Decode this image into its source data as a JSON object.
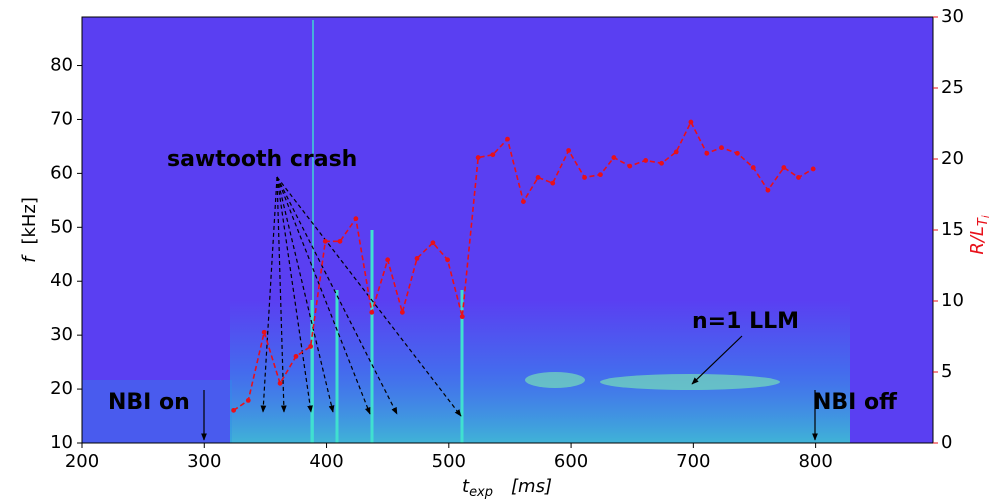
{
  "chart_data": {
    "type": "line",
    "xlabel": {
      "symbol": "t",
      "subscript": "exp",
      "unit": "[ms]"
    },
    "ylabel": {
      "symbol": "f",
      "unit": "[kHz]"
    },
    "y2label": {
      "symbol": "R/L",
      "subscript": "T",
      "subsubscript": "i"
    },
    "xlim": [
      200,
      896
    ],
    "ylim": [
      10,
      89
    ],
    "y2lim": [
      0,
      30
    ],
    "xticks": [
      200,
      300,
      400,
      500,
      600,
      700,
      800
    ],
    "yticks": [
      10,
      20,
      30,
      40,
      50,
      60,
      70,
      80
    ],
    "y2ticks": [
      0,
      5,
      10,
      15,
      20,
      25,
      30
    ],
    "y2color": "#e8101a",
    "x": [
      324,
      336,
      349,
      362,
      375,
      387,
      399,
      411,
      424,
      437,
      450,
      462,
      474,
      487,
      499,
      511,
      524,
      536,
      548,
      561,
      573,
      585,
      598,
      611,
      624,
      635,
      648,
      661,
      674,
      686,
      698,
      711,
      723,
      736,
      749,
      761,
      774,
      786,
      798
    ],
    "series": [
      {
        "color": "#e8101a",
        "axis": "y2",
        "values": [
          2.3,
          3.0,
          7.8,
          4.2,
          6.1,
          6.8,
          14.2,
          14.2,
          15.8,
          9.2,
          12.9,
          9.2,
          13.0,
          14.1,
          12.9,
          8.9,
          20.1,
          20.3,
          21.4,
          17.0,
          18.7,
          18.3,
          20.6,
          18.7,
          18.9,
          20.1,
          19.5,
          19.9,
          19.7,
          20.5,
          22.6,
          20.4,
          20.8,
          20.4,
          19.4,
          17.8,
          19.4,
          18.7,
          19.3
        ]
      }
    ],
    "annotations": [
      "sawtooth crash",
      "n=1 LLM",
      "NBI on",
      "NBI off"
    ]
  }
}
